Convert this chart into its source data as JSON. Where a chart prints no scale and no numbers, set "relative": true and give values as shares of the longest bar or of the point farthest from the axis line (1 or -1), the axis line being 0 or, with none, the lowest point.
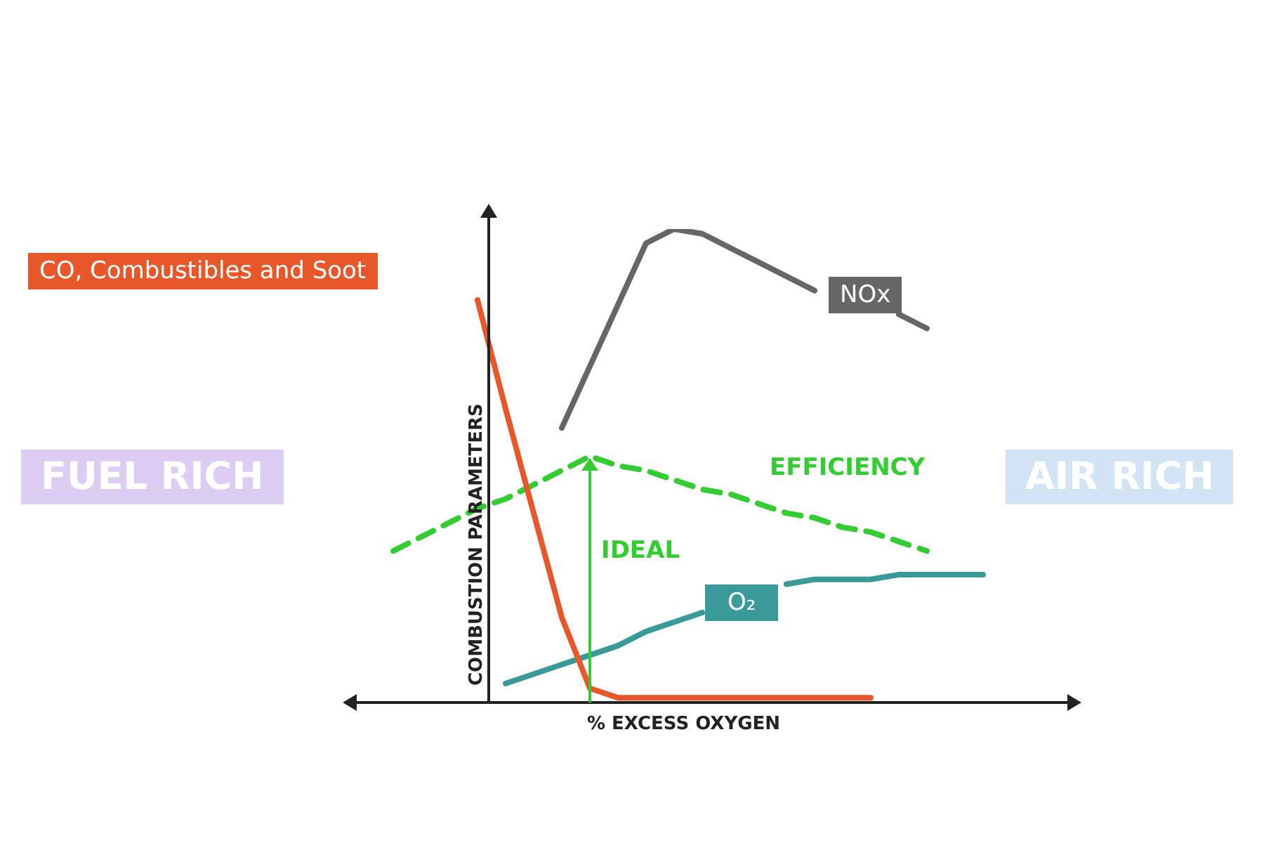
{
  "chart_data": {
    "type": "line",
    "relative": true,
    "xlabel": "% EXCESS OXYGEN",
    "ylabel": "COMBUSTION PARAMETERS",
    "categories": [
      null,
      null,
      null,
      null,
      null,
      null,
      null,
      null,
      null,
      null,
      null,
      null,
      null,
      null,
      null,
      null,
      null,
      null,
      null,
      null,
      null,
      null,
      null
    ],
    "series": [
      {
        "name": "CO, Combustibles and Soot",
        "color": "#e8572a",
        "values": [
          null,
          null,
          null,
          null,
          0.85,
          0.62,
          0.4,
          0.18,
          0.03,
          0.01,
          0.01,
          0.01,
          0.01,
          0.01,
          0.01,
          0.01,
          0.01,
          0.01,
          0.01,
          null,
          null,
          null,
          null
        ]
      },
      {
        "name": "NOx",
        "color": "#666666",
        "values": [
          null,
          null,
          null,
          null,
          null,
          null,
          null,
          0.58,
          0.71,
          0.84,
          0.97,
          1.0,
          0.99,
          0.96,
          0.93,
          0.9,
          0.87,
          null,
          null,
          0.82,
          0.79,
          null,
          null
        ]
      },
      {
        "name": "EFFICIENCY",
        "color": "#33cc33",
        "line_style": "dashed",
        "values": [
          null,
          0.32,
          0.35,
          0.38,
          0.41,
          0.43,
          0.46,
          0.49,
          0.52,
          0.5,
          0.49,
          0.47,
          0.45,
          0.44,
          0.42,
          0.4,
          0.39,
          0.37,
          0.36,
          0.34,
          0.32,
          null,
          null
        ]
      },
      {
        "name": "O₂",
        "color": "#3a9a9a",
        "values": [
          null,
          null,
          null,
          null,
          null,
          0.04,
          0.06,
          0.08,
          0.1,
          0.12,
          0.15,
          0.17,
          0.19,
          null,
          null,
          0.25,
          0.26,
          0.26,
          0.26,
          0.27,
          0.27,
          0.27,
          0.27
        ]
      }
    ],
    "annotations": [
      "FUEL RICH",
      "AIR RICH",
      "IDEAL"
    ],
    "legend": false,
    "marker": "none"
  }
}
